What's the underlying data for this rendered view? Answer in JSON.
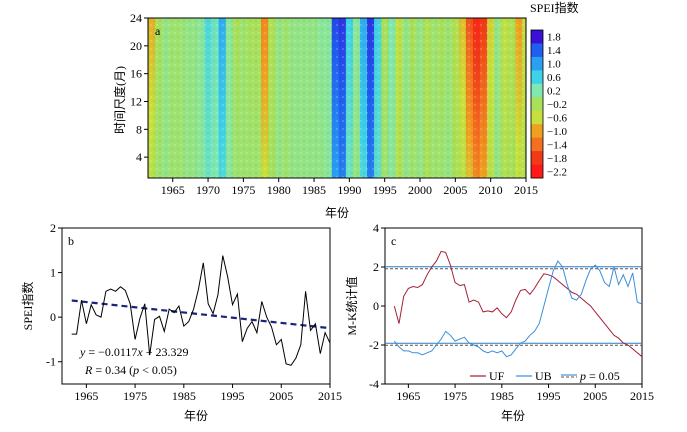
{
  "chart_data": [
    {
      "type": "heatmap",
      "panel_label": "a",
      "xlabel": "年份",
      "ylabel": "时间尺度(月)",
      "x_ticks": [
        "1965",
        "1970",
        "1975",
        "1980",
        "1985",
        "1990",
        "1995",
        "2000",
        "2005",
        "2010",
        "2015"
      ],
      "y_ticks": [
        "4",
        "8",
        "12",
        "16",
        "20",
        "24"
      ],
      "xlim": [
        1961.5,
        2015
      ],
      "ylim": [
        1,
        24
      ],
      "colorbar_title": "SPEI指数",
      "colorbar_ticks": [
        "1.8",
        "1.4",
        "1.0",
        "0.6",
        "0.2",
        "−0.2",
        "−0.6",
        "−1.0",
        "−1.4",
        "−1.8",
        "−2.2"
      ],
      "colorbar_colors": [
        "#3a0fd6",
        "#1f5ef0",
        "#2aa0f2",
        "#3ed2e8",
        "#7fe8b0",
        "#a8e05a",
        "#c8e03c",
        "#f0a020",
        "#f47020",
        "#f03a18",
        "#ff1a1a"
      ],
      "spei_by_year": {
        "years": [
          1962,
          1963,
          1964,
          1965,
          1966,
          1967,
          1968,
          1969,
          1970,
          1971,
          1972,
          1973,
          1974,
          1975,
          1976,
          1977,
          1978,
          1979,
          1980,
          1981,
          1982,
          1983,
          1984,
          1985,
          1986,
          1987,
          1988,
          1989,
          1990,
          1991,
          1992,
          1993,
          1994,
          1995,
          1996,
          1997,
          1998,
          1999,
          2000,
          2001,
          2002,
          2003,
          2004,
          2005,
          2006,
          2007,
          2008,
          2009,
          2010,
          2011,
          2012,
          2013,
          2014,
          2015
        ],
        "long_scale": [
          -0.9,
          -0.2,
          0.0,
          -0.1,
          -0.1,
          0.0,
          0.0,
          0.1,
          0.5,
          0.3,
          0.9,
          0.1,
          -0.2,
          -0.1,
          -0.2,
          -0.2,
          -1.2,
          -0.3,
          0.0,
          -0.1,
          0.0,
          0.0,
          0.0,
          0.0,
          0.1,
          0.1,
          1.5,
          1.6,
          0.6,
          0.1,
          0.9,
          1.6,
          0.6,
          -0.2,
          0.2,
          -0.5,
          0.0,
          -0.2,
          0.0,
          -0.3,
          -0.1,
          -0.2,
          -0.1,
          -0.3,
          -0.8,
          -1.6,
          -2.0,
          -1.8,
          -0.7,
          0.0,
          -0.5,
          -0.3,
          -1.0,
          -0.5
        ],
        "short_scale": [
          -0.4,
          -0.1,
          0.0,
          -0.1,
          -0.1,
          0.0,
          0.0,
          0.1,
          0.3,
          0.2,
          0.5,
          0.1,
          -0.1,
          -0.1,
          -0.1,
          -0.1,
          -0.6,
          -0.2,
          0.0,
          -0.1,
          0.0,
          0.0,
          0.0,
          0.0,
          0.0,
          0.1,
          1.0,
          1.2,
          0.3,
          0.0,
          0.5,
          1.2,
          0.4,
          -0.1,
          0.1,
          -0.3,
          0.0,
          -0.1,
          0.0,
          -0.2,
          -0.1,
          -0.1,
          0.0,
          -0.2,
          -0.4,
          -0.8,
          -1.2,
          -1.0,
          -0.4,
          0.0,
          -0.3,
          -0.2,
          -0.5,
          -0.3
        ]
      }
    },
    {
      "type": "line",
      "panel_label": "b",
      "xlabel": "年份",
      "ylabel": "SPEI指数",
      "xlim": [
        1960,
        2015
      ],
      "ylim": [
        -1.5,
        2
      ],
      "x_ticks": [
        "1965",
        "1975",
        "1985",
        "1995",
        "2005",
        "2015"
      ],
      "y_ticks": [
        "-1",
        "0",
        "1",
        "2"
      ],
      "series": [
        {
          "x": [
            1962,
            1963,
            1964,
            1965,
            1966,
            1967,
            1968,
            1969,
            1970,
            1971,
            1972,
            1973,
            1974,
            1975,
            1976,
            1977,
            1978,
            1979,
            1980,
            1981,
            1982,
            1983,
            1984,
            1985,
            1986,
            1987,
            1988,
            1989,
            1990,
            1991,
            1992,
            1993,
            1994,
            1995,
            1996,
            1997,
            1998,
            1999,
            2000,
            2001,
            2002,
            2003,
            2004,
            2005,
            2006,
            2007,
            2008,
            2009,
            2010,
            2011,
            2012,
            2013,
            2014,
            2015
          ],
          "y": [
            -0.38,
            -0.38,
            0.38,
            -0.15,
            0.28,
            0.05,
            0.0,
            0.58,
            0.63,
            0.58,
            0.68,
            0.6,
            0.3,
            -0.5,
            -0.02,
            0.3,
            -0.85,
            -0.05,
            0.02,
            -0.32,
            0.18,
            0.1,
            0.25,
            -0.2,
            -0.1,
            0.18,
            0.62,
            1.22,
            0.3,
            0.08,
            0.5,
            1.38,
            0.9,
            0.28,
            0.52,
            -0.55,
            -0.25,
            -0.1,
            -0.35,
            0.35,
            0.0,
            -0.22,
            -0.62,
            -0.5,
            -1.05,
            -1.08,
            -0.92,
            -0.62,
            0.58,
            -0.3,
            -0.15,
            -0.82,
            -0.35,
            -0.58
          ]
        }
      ],
      "trendline": {
        "slope": -0.0117,
        "intercept": 23.329,
        "style": "dashed",
        "color": "#1a237e"
      },
      "annotations": {
        "equation_y": "y",
        "equation_rest": " = −0.0117",
        "equation_x": "x",
        "equation_tail": " + 23.329",
        "stat_r": "R",
        "stat_mid": " = 0.34 (",
        "stat_p": "p",
        "stat_tail": " < 0.05)"
      }
    },
    {
      "type": "line",
      "panel_label": "c",
      "xlabel": "年份",
      "ylabel": "M-K统计值",
      "xlim": [
        1960,
        2015
      ],
      "ylim": [
        -4,
        4
      ],
      "x_ticks": [
        "1965",
        "1975",
        "1985",
        "1995",
        "2005",
        "2015"
      ],
      "y_ticks": [
        "-4",
        "-2",
        "0",
        "2",
        "4"
      ],
      "series": [
        {
          "name": "UF",
          "color": "#a31f34",
          "x": [
            1962,
            1963,
            1964,
            1965,
            1966,
            1967,
            1968,
            1969,
            1970,
            1971,
            1972,
            1973,
            1974,
            1975,
            1976,
            1977,
            1978,
            1979,
            1980,
            1981,
            1982,
            1983,
            1984,
            1985,
            1986,
            1987,
            1988,
            1989,
            1990,
            1991,
            1992,
            1993,
            1994,
            1995,
            1996,
            1997,
            1998,
            1999,
            2000,
            2001,
            2002,
            2003,
            2004,
            2005,
            2006,
            2007,
            2008,
            2009,
            2010,
            2011,
            2012,
            2013,
            2014,
            2015
          ],
          "y": [
            0.0,
            -0.9,
            0.5,
            0.9,
            1.0,
            0.95,
            1.1,
            1.6,
            2.0,
            2.3,
            2.8,
            2.75,
            2.1,
            1.2,
            1.05,
            1.1,
            0.2,
            0.3,
            0.2,
            -0.3,
            -0.25,
            -0.3,
            -0.1,
            -0.4,
            -0.6,
            -0.3,
            0.3,
            0.8,
            0.85,
            0.6,
            0.9,
            1.3,
            1.65,
            1.6,
            1.5,
            1.3,
            1.1,
            0.9,
            0.7,
            0.6,
            0.4,
            0.2,
            0.0,
            -0.3,
            -0.6,
            -0.9,
            -1.2,
            -1.5,
            -1.65,
            -1.9,
            -2.0,
            -2.2,
            -2.4,
            -2.6
          ]
        },
        {
          "name": "UB",
          "color": "#3b8fd9",
          "x": [
            1962,
            1963,
            1964,
            1965,
            1966,
            1967,
            1968,
            1969,
            1970,
            1971,
            1972,
            1973,
            1974,
            1975,
            1976,
            1977,
            1978,
            1979,
            1980,
            1981,
            1982,
            1983,
            1984,
            1985,
            1986,
            1987,
            1988,
            1989,
            1990,
            1991,
            1992,
            1993,
            1994,
            1995,
            1996,
            1997,
            1998,
            1999,
            2000,
            2001,
            2002,
            2003,
            2004,
            2005,
            2006,
            2007,
            2008,
            2009,
            2010,
            2011,
            2012,
            2013,
            2014,
            2015
          ],
          "y": [
            -1.8,
            -2.1,
            -2.3,
            -2.3,
            -2.4,
            -2.4,
            -2.5,
            -2.4,
            -2.3,
            -2.0,
            -1.7,
            -1.3,
            -1.5,
            -1.8,
            -1.7,
            -1.6,
            -1.9,
            -2.0,
            -2.1,
            -2.3,
            -2.4,
            -2.3,
            -2.4,
            -2.3,
            -2.6,
            -2.5,
            -2.2,
            -1.9,
            -1.8,
            -1.5,
            -1.3,
            -0.9,
            0.0,
            0.9,
            1.8,
            2.3,
            2.0,
            1.1,
            0.4,
            0.3,
            0.6,
            1.3,
            1.9,
            2.1,
            1.8,
            1.2,
            1.0,
            2.0,
            1.1,
            1.6,
            1.0,
            1.7,
            0.2,
            0.1
          ]
        }
      ],
      "significance_lines": [
        1.96,
        -1.96
      ],
      "legend": {
        "placement": "bottom-right",
        "uf": "UF",
        "ub": "UB",
        "p_italic": "p",
        "p_rest": " = 0.05"
      }
    }
  ]
}
